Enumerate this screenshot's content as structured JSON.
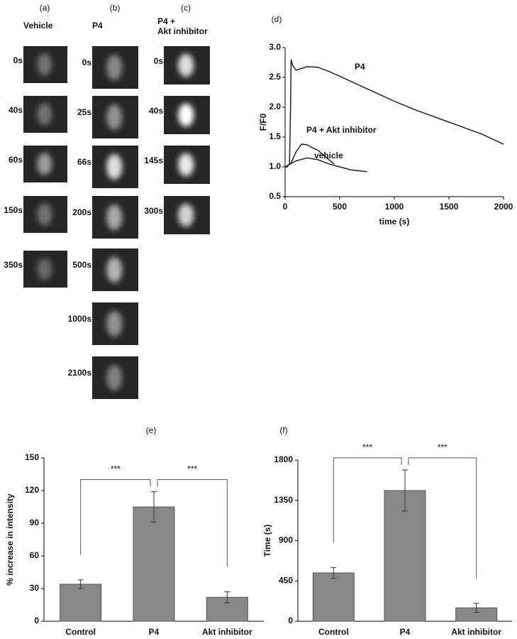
{
  "image_panels": [
    {
      "letter": "(a)",
      "title": [
        "Vehicle"
      ],
      "times": [
        "0s",
        "40s",
        "60s",
        "150s",
        "350s"
      ]
    },
    {
      "letter": "(b)",
      "title": [
        "P4"
      ],
      "times": [
        "0s",
        "25s",
        "66s",
        "200s",
        "500s",
        "1000s",
        "2100s"
      ]
    },
    {
      "letter": "(c)",
      "title": [
        "P4 +",
        "Akt inhibitor"
      ],
      "times": [
        "0s",
        "40s",
        "145s",
        "300s"
      ]
    }
  ],
  "chart_data": [
    {
      "type": "line",
      "panel": "(d)",
      "xlabel": "time (s)",
      "ylabel": "F/F0",
      "xlim": [
        0,
        2000
      ],
      "xticks": [
        0,
        500,
        1000,
        1500,
        2000
      ],
      "ylim": [
        0.5,
        3.0
      ],
      "yticks": [
        {
          "value": 0.5,
          "label": "0.5"
        },
        {
          "value": 1.0,
          "label": "1.0"
        },
        {
          "value": 1.5,
          "label": "1.5"
        },
        {
          "value": 2.0,
          "label": "2.0"
        },
        {
          "value": 2.5,
          "label": "2.5"
        },
        {
          "value": 3.0,
          "label": "3.0"
        }
      ],
      "series": [
        {
          "name": "P4",
          "color": "#222222",
          "x": [
            0,
            20,
            40,
            50,
            55,
            70,
            100,
            150,
            200,
            300,
            400,
            500,
            700,
            1000,
            1200,
            1500,
            1800,
            2000
          ],
          "values": [
            1.0,
            1.0,
            1.05,
            2.0,
            2.8,
            2.7,
            2.62,
            2.65,
            2.68,
            2.67,
            2.6,
            2.52,
            2.35,
            2.1,
            1.95,
            1.75,
            1.55,
            1.38
          ]
        },
        {
          "name": "P4 + Akt inhibitor",
          "color": "#222222",
          "x": [
            0,
            50,
            100,
            150,
            200,
            250,
            300,
            350,
            400,
            450
          ],
          "values": [
            1.0,
            1.05,
            1.25,
            1.38,
            1.37,
            1.32,
            1.28,
            1.2,
            1.12,
            1.05
          ]
        },
        {
          "name": "vehicle",
          "color": "#222222",
          "x": [
            0,
            100,
            200,
            300,
            400,
            500,
            600,
            700,
            750
          ],
          "values": [
            1.0,
            1.1,
            1.15,
            1.12,
            1.05,
            1.0,
            0.95,
            0.93,
            0.92
          ]
        }
      ]
    },
    {
      "type": "bar",
      "panel": "(e)",
      "ylabel": "% increase in intensity",
      "categories": [
        "Control",
        "P4",
        "Akt inhibitor"
      ],
      "values": [
        34,
        105,
        22
      ],
      "errors": [
        4,
        14,
        5
      ],
      "color": "#888888",
      "ylim": [
        0,
        150
      ],
      "yticks": [
        0,
        30,
        60,
        90,
        120,
        150
      ],
      "annotations": [
        "***",
        "***"
      ]
    },
    {
      "type": "bar",
      "panel": "(f)",
      "ylabel": "Time (s)",
      "categories": [
        "Control",
        "P4",
        "Akt inhibitor"
      ],
      "values": [
        540,
        1460,
        150
      ],
      "errors": [
        60,
        230,
        50
      ],
      "color": "#888888",
      "ylim": [
        0,
        1800
      ],
      "yticks": [
        0,
        450,
        900,
        1350,
        1800
      ],
      "annotations": [
        "***",
        "***"
      ]
    }
  ]
}
